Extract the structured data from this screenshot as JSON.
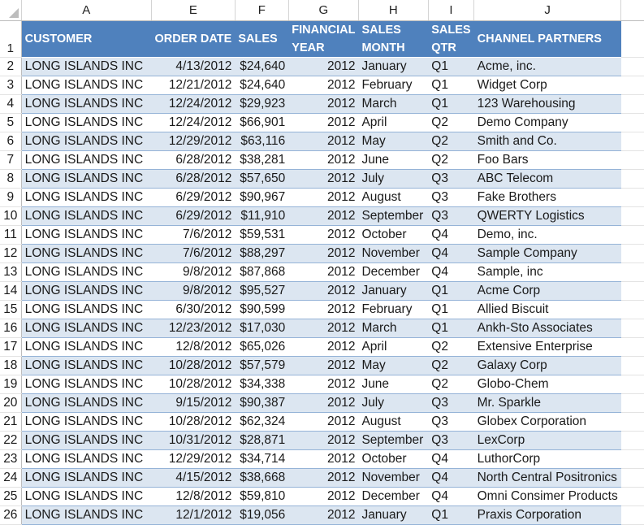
{
  "columns": [
    "A",
    "E",
    "F",
    "G",
    "H",
    "I",
    "J"
  ],
  "headers": {
    "customer": "CUSTOMER",
    "order_date": "ORDER DATE",
    "sales": "SALES",
    "financial_year_1": "FINANCIAL",
    "financial_year_2": "YEAR",
    "sales_month_1": "SALES",
    "sales_month_2": "MONTH",
    "sales_qtr_1": "SALES",
    "sales_qtr_2": "QTR",
    "channel_partners": "CHANNEL PARTNERS"
  },
  "header_row_number": "1",
  "rows": [
    {
      "n": "2",
      "customer": "LONG ISLANDS INC",
      "date": "4/13/2012",
      "sales": "$24,640",
      "year": "2012",
      "month": "January",
      "qtr": "Q1",
      "partner": "Acme, inc."
    },
    {
      "n": "3",
      "customer": "LONG ISLANDS INC",
      "date": "12/21/2012",
      "sales": "$24,640",
      "year": "2012",
      "month": "February",
      "qtr": "Q1",
      "partner": "Widget Corp"
    },
    {
      "n": "4",
      "customer": "LONG ISLANDS INC",
      "date": "12/24/2012",
      "sales": "$29,923",
      "year": "2012",
      "month": "March",
      "qtr": "Q1",
      "partner": "123 Warehousing"
    },
    {
      "n": "5",
      "customer": "LONG ISLANDS INC",
      "date": "12/24/2012",
      "sales": "$66,901",
      "year": "2012",
      "month": "April",
      "qtr": "Q2",
      "partner": "Demo Company"
    },
    {
      "n": "6",
      "customer": "LONG ISLANDS INC",
      "date": "12/29/2012",
      "sales": "$63,116",
      "year": "2012",
      "month": "May",
      "qtr": "Q2",
      "partner": "Smith and Co."
    },
    {
      "n": "7",
      "customer": "LONG ISLANDS INC",
      "date": "6/28/2012",
      "sales": "$38,281",
      "year": "2012",
      "month": "June",
      "qtr": "Q2",
      "partner": "Foo Bars"
    },
    {
      "n": "8",
      "customer": "LONG ISLANDS INC",
      "date": "6/28/2012",
      "sales": "$57,650",
      "year": "2012",
      "month": "July",
      "qtr": "Q3",
      "partner": "ABC Telecom"
    },
    {
      "n": "9",
      "customer": "LONG ISLANDS INC",
      "date": "6/29/2012",
      "sales": "$90,967",
      "year": "2012",
      "month": "August",
      "qtr": "Q3",
      "partner": "Fake Brothers"
    },
    {
      "n": "10",
      "customer": "LONG ISLANDS INC",
      "date": "6/29/2012",
      "sales": "$11,910",
      "year": "2012",
      "month": "September",
      "qtr": "Q3",
      "partner": "QWERTY Logistics"
    },
    {
      "n": "11",
      "customer": "LONG ISLANDS INC",
      "date": "7/6/2012",
      "sales": "$59,531",
      "year": "2012",
      "month": "October",
      "qtr": "Q4",
      "partner": "Demo, inc."
    },
    {
      "n": "12",
      "customer": "LONG ISLANDS INC",
      "date": "7/6/2012",
      "sales": "$88,297",
      "year": "2012",
      "month": "November",
      "qtr": "Q4",
      "partner": "Sample Company"
    },
    {
      "n": "13",
      "customer": "LONG ISLANDS INC",
      "date": "9/8/2012",
      "sales": "$87,868",
      "year": "2012",
      "month": "December",
      "qtr": "Q4",
      "partner": "Sample, inc"
    },
    {
      "n": "14",
      "customer": "LONG ISLANDS INC",
      "date": "9/8/2012",
      "sales": "$95,527",
      "year": "2012",
      "month": "January",
      "qtr": "Q1",
      "partner": "Acme Corp"
    },
    {
      "n": "15",
      "customer": "LONG ISLANDS INC",
      "date": "6/30/2012",
      "sales": "$90,599",
      "year": "2012",
      "month": "February",
      "qtr": "Q1",
      "partner": "Allied Biscuit"
    },
    {
      "n": "16",
      "customer": "LONG ISLANDS INC",
      "date": "12/23/2012",
      "sales": "$17,030",
      "year": "2012",
      "month": "March",
      "qtr": "Q1",
      "partner": "Ankh-Sto Associates"
    },
    {
      "n": "17",
      "customer": "LONG ISLANDS INC",
      "date": "12/8/2012",
      "sales": "$65,026",
      "year": "2012",
      "month": "April",
      "qtr": "Q2",
      "partner": "Extensive Enterprise"
    },
    {
      "n": "18",
      "customer": "LONG ISLANDS INC",
      "date": "10/28/2012",
      "sales": "$57,579",
      "year": "2012",
      "month": "May",
      "qtr": "Q2",
      "partner": "Galaxy Corp"
    },
    {
      "n": "19",
      "customer": "LONG ISLANDS INC",
      "date": "10/28/2012",
      "sales": "$34,338",
      "year": "2012",
      "month": "June",
      "qtr": "Q2",
      "partner": "Globo-Chem"
    },
    {
      "n": "20",
      "customer": "LONG ISLANDS INC",
      "date": "9/15/2012",
      "sales": "$90,387",
      "year": "2012",
      "month": "July",
      "qtr": "Q3",
      "partner": "Mr. Sparkle"
    },
    {
      "n": "21",
      "customer": "LONG ISLANDS INC",
      "date": "10/28/2012",
      "sales": "$62,324",
      "year": "2012",
      "month": "August",
      "qtr": "Q3",
      "partner": "Globex Corporation"
    },
    {
      "n": "22",
      "customer": "LONG ISLANDS INC",
      "date": "10/31/2012",
      "sales": "$28,871",
      "year": "2012",
      "month": "September",
      "qtr": "Q3",
      "partner": "LexCorp"
    },
    {
      "n": "23",
      "customer": "LONG ISLANDS INC",
      "date": "12/29/2012",
      "sales": "$34,714",
      "year": "2012",
      "month": "October",
      "qtr": "Q4",
      "partner": "LuthorCorp"
    },
    {
      "n": "24",
      "customer": "LONG ISLANDS INC",
      "date": "4/15/2012",
      "sales": "$38,668",
      "year": "2012",
      "month": "November",
      "qtr": "Q4",
      "partner": "North Central Positronics"
    },
    {
      "n": "25",
      "customer": "LONG ISLANDS INC",
      "date": "12/8/2012",
      "sales": "$59,810",
      "year": "2012",
      "month": "December",
      "qtr": "Q4",
      "partner": "Omni Consimer Products"
    },
    {
      "n": "26",
      "customer": "LONG ISLANDS INC",
      "date": "12/1/2012",
      "sales": "$19,056",
      "year": "2012",
      "month": "January",
      "qtr": "Q1",
      "partner": "Praxis Corporation"
    }
  ]
}
